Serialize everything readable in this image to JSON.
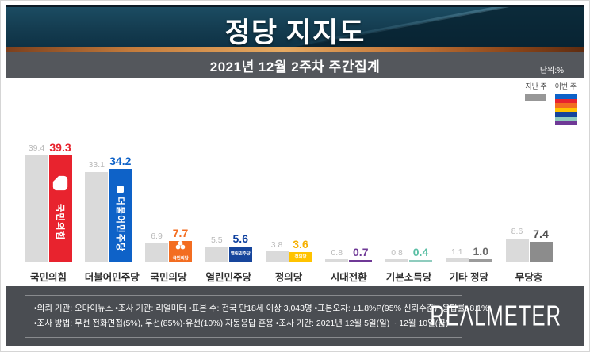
{
  "header": {
    "title": "정당 지지도"
  },
  "subtitle_bar": {
    "text": "2021년 12월 2주차 주간집계",
    "unit_label": "단위:%"
  },
  "legend": {
    "prev_label": "지난 주",
    "curr_label": "이번 주",
    "prev_color": "#979797",
    "curr_colors": [
      "#0e62c8",
      "#e8232e",
      "#f36d21",
      "#ffc300",
      "#16459c",
      "#8fccbe",
      "#6f3996"
    ]
  },
  "chart_data": {
    "type": "bar",
    "title": "정당 지지도",
    "subtitle": "2021년 12월 2주차 주간집계",
    "unit": "%",
    "ylim": [
      0,
      40
    ],
    "grid": false,
    "legend_position": "top-right",
    "categories": [
      "국민의힘",
      "더불어민주당",
      "국민의당",
      "열린민주당",
      "정의당",
      "시대전환",
      "기본소득당",
      "기타 정당",
      "무당층"
    ],
    "series": [
      {
        "name": "지난 주",
        "values": [
          39.4,
          33.1,
          6.9,
          5.5,
          3.8,
          0.8,
          0.8,
          1.1,
          8.6
        ]
      },
      {
        "name": "이번 주",
        "values": [
          39.3,
          34.2,
          7.7,
          5.6,
          3.6,
          0.7,
          0.4,
          1.0,
          7.4
        ]
      }
    ],
    "prev_bar_color": "#dadada",
    "parties": [
      {
        "name": "국민의힘",
        "prev": 39.4,
        "curr": 39.3,
        "color": "#e8232e",
        "value_color": "#e8232e",
        "inner_label": "국민의힘",
        "inner_style": "vertical",
        "logo": "ppp-bubble-icon"
      },
      {
        "name": "더불어민주당",
        "prev": 33.1,
        "curr": 34.2,
        "color": "#0e62c8",
        "value_color": "#0e62c8",
        "inner_label": "더불어민주당",
        "inner_style": "vertical",
        "logo": "dp-square-icon"
      },
      {
        "name": "국민의당",
        "prev": 6.9,
        "curr": 7.7,
        "color": "#f36d21",
        "value_color": "#f36d21",
        "inner_label": "국민의당",
        "inner_style": "tiny",
        "logo": "clover-icon"
      },
      {
        "name": "열린민주당",
        "prev": 5.5,
        "curr": 5.6,
        "color": "#16459c",
        "value_color": "#0d3f9e",
        "inner_label": "열린민주당",
        "inner_style": "tiny",
        "logo": null
      },
      {
        "name": "정의당",
        "prev": 3.8,
        "curr": 3.6,
        "color": "#ffc300",
        "value_color": "#f5b000",
        "inner_label": "정의당",
        "inner_style": "tiny",
        "logo": null
      },
      {
        "name": "시대전환",
        "prev": 0.8,
        "curr": 0.7,
        "color": "#6f3996",
        "value_color": "#6f3996",
        "inner_label": null,
        "inner_style": "none",
        "logo": null
      },
      {
        "name": "기본소득당",
        "prev": 0.8,
        "curr": 0.4,
        "color": "#8fccbe",
        "value_color": "#5bbfa5",
        "inner_label": null,
        "inner_style": "none",
        "logo": null
      },
      {
        "name": "기타 정당",
        "prev": 1.1,
        "curr": 1.0,
        "color": "#9b9b9b",
        "value_color": "#6b6b6b",
        "inner_label": null,
        "inner_style": "none",
        "logo": null
      },
      {
        "name": "무당층",
        "prev": 8.6,
        "curr": 7.4,
        "color": "#8c8c8c",
        "value_color": "#4f4f4f",
        "inner_label": null,
        "inner_style": "none",
        "logo": null
      }
    ]
  },
  "footer": {
    "line1": "•의뢰 기관: 오마이뉴스 •조사 기관: 리얼미터 •표본 수: 전국 만18세 이상 3,043명 •표본오차: ±1.8%P(95% 신뢰수준) •응답률: 8.1%",
    "line2": "•조사 방법: 무선 전화면접(5%), 무선(85%)·유선(10%) 자동응답 혼용 •조사 기간: 2021년 12월 5일(일) ~ 12월 10일(금)",
    "logo_text": "REΛLMETER"
  }
}
